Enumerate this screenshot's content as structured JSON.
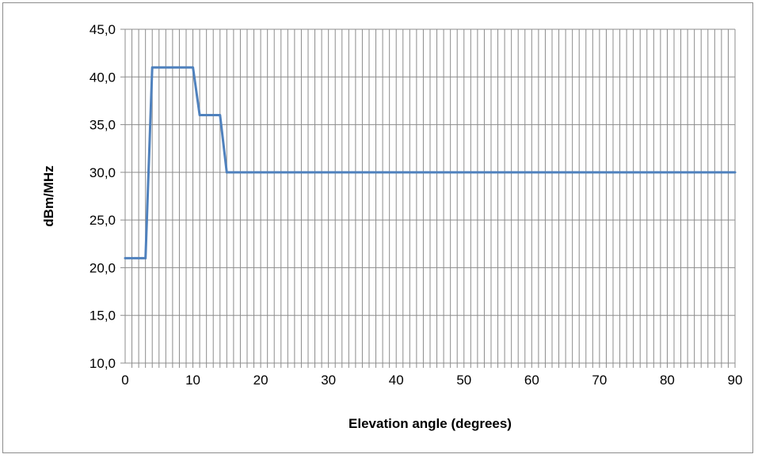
{
  "chart_data": {
    "type": "line",
    "title": "",
    "xlabel": "Elevation angle (degrees)",
    "ylabel": "dBm/MHz",
    "xlim": [
      0,
      90
    ],
    "ylim": [
      10,
      45
    ],
    "x_ticks": [
      0,
      10,
      20,
      30,
      40,
      50,
      60,
      70,
      80,
      90
    ],
    "x_tick_labels": [
      "0",
      "10",
      "20",
      "30",
      "40",
      "50",
      "60",
      "70",
      "80",
      "90"
    ],
    "y_ticks": [
      10,
      15,
      20,
      25,
      30,
      35,
      40,
      45
    ],
    "y_tick_labels": [
      "10,0",
      "15,0",
      "20,0",
      "25,0",
      "30,0",
      "35,0",
      "40,0",
      "45,0"
    ],
    "grid": true,
    "legend": "none",
    "series": [
      {
        "color": "#4f81bd",
        "x": [
          0,
          3,
          4,
          10,
          11,
          14,
          15,
          90
        ],
        "y": [
          21,
          21,
          41,
          41,
          36,
          36,
          30,
          30
        ]
      }
    ]
  }
}
